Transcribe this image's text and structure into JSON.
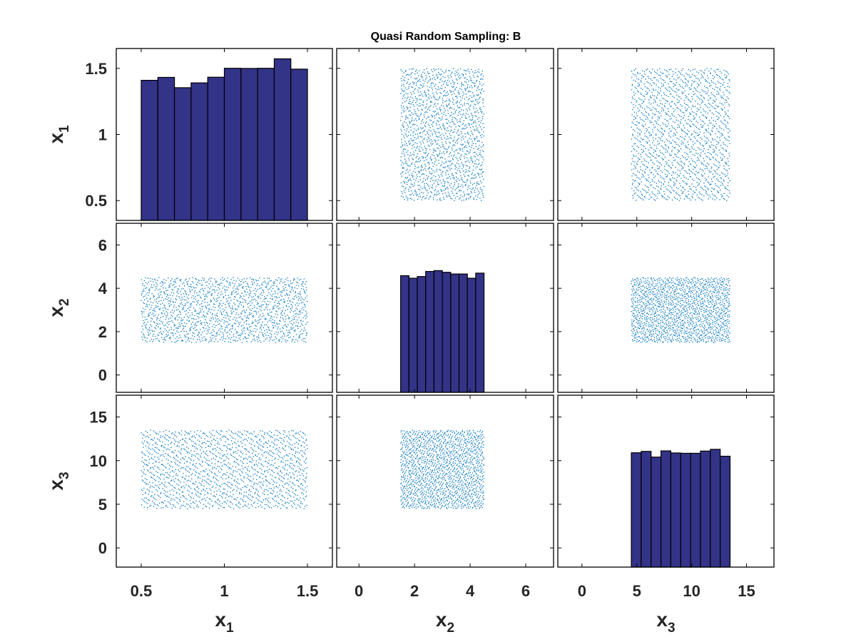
{
  "chart_data": {
    "type": "scatter-matrix",
    "title": "Quasi Random Sampling: B",
    "variables": [
      {
        "name": "x",
        "subscript": "1",
        "range": [
          0.5,
          1.5
        ],
        "axis_lim": [
          0.35,
          1.65
        ],
        "ticks": [
          0.5,
          1,
          1.5
        ],
        "tick_labels": [
          "0.5",
          "1",
          "1.5"
        ]
      },
      {
        "name": "x",
        "subscript": "2",
        "range": [
          1.5,
          4.5
        ],
        "axis_lim": [
          -0.8,
          7.0
        ],
        "ticks": [
          0,
          2,
          4,
          6
        ],
        "tick_labels": [
          "0",
          "2",
          "4",
          "6"
        ]
      },
      {
        "name": "x",
        "subscript": "3",
        "range": [
          4.5,
          13.5
        ],
        "axis_lim": [
          -2.2,
          17.5
        ],
        "ticks": [
          0,
          5,
          10,
          15
        ],
        "tick_labels": [
          "0",
          "5",
          "10",
          "15"
        ]
      }
    ],
    "histograms": [
      {
        "variable": 0,
        "bins": 10,
        "heights": [
          0.815,
          0.832,
          0.772,
          0.8,
          0.833,
          0.885,
          0.884,
          0.885,
          0.94,
          0.88
        ]
      },
      {
        "variable": 1,
        "bins": 10,
        "heights": [
          0.69,
          0.675,
          0.685,
          0.715,
          0.72,
          0.71,
          0.7,
          0.7,
          0.675,
          0.705
        ]
      },
      {
        "variable": 2,
        "bins": 10,
        "heights": [
          0.665,
          0.673,
          0.64,
          0.676,
          0.664,
          0.662,
          0.662,
          0.675,
          0.685,
          0.645
        ]
      }
    ],
    "scatter": {
      "points": 1500,
      "color": "#0072BD",
      "sequence": "quasi-random"
    },
    "bar_color": "#333388",
    "bar_edge": "#000000",
    "grid": false
  }
}
